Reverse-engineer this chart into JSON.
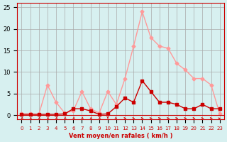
{
  "x": [
    0,
    1,
    2,
    3,
    4,
    5,
    6,
    7,
    8,
    9,
    10,
    11,
    12,
    13,
    14,
    15,
    16,
    17,
    18,
    19,
    20,
    21,
    22,
    23
  ],
  "rafales": [
    0.3,
    0.3,
    0.2,
    7.0,
    3.0,
    0.5,
    1.0,
    5.5,
    1.5,
    0.5,
    5.5,
    2.5,
    8.5,
    16.0,
    24.0,
    18.0,
    16.0,
    15.5,
    12.0,
    10.5,
    8.5,
    8.5,
    7.0,
    0.3
  ],
  "moyen": [
    0.2,
    0.2,
    0.2,
    0.2,
    0.2,
    0.3,
    1.5,
    1.5,
    1.0,
    0.2,
    0.3,
    2.0,
    4.0,
    3.0,
    8.0,
    5.5,
    3.0,
    3.0,
    2.5,
    1.5,
    1.5,
    2.5,
    1.5,
    1.5
  ],
  "bg_color": "#d7f0f0",
  "grid_color": "#aaaaaa",
  "rafales_color": "#ff9999",
  "moyen_color": "#cc0000",
  "xlabel": "Vent moyen/en rafales ( km/h )",
  "xlabel_color": "#cc0000",
  "yticks": [
    0,
    5,
    10,
    15,
    20,
    25
  ],
  "ylim": [
    -1,
    26
  ],
  "xlim": [
    -0.5,
    23.5
  ]
}
